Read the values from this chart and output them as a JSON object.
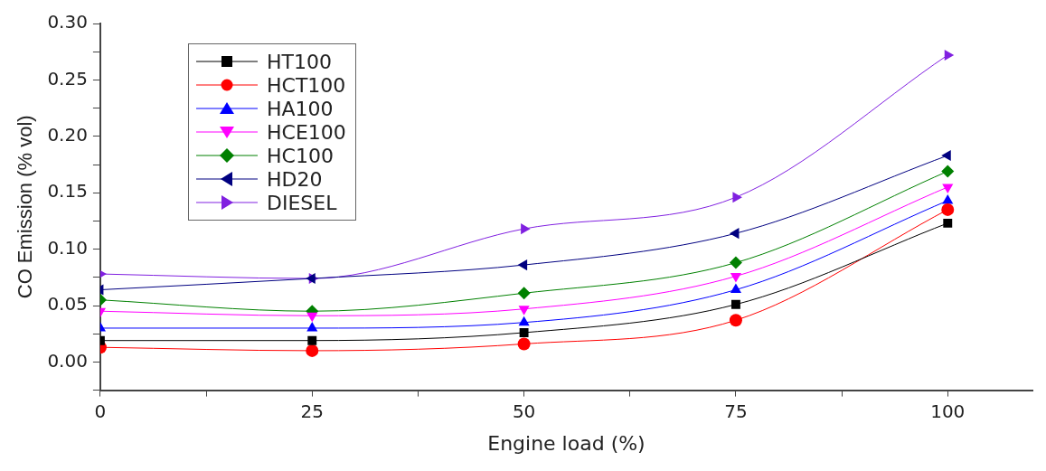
{
  "chart_data": {
    "type": "line",
    "xlabel": "Engine load (%)",
    "ylabel": "CO Emission (% vol)",
    "x": [
      0,
      25,
      50,
      75,
      100
    ],
    "xlim": [
      0,
      110
    ],
    "xticks": [
      0,
      {
        "value": 12.5,
        "label": null
      },
      25,
      {
        "value": 37.5,
        "label": null
      },
      50,
      {
        "value": 62.5,
        "label": null
      },
      75,
      {
        "value": 87.5,
        "label": null
      },
      100
    ],
    "ylim": [
      -0.025,
      0.3
    ],
    "yticks": [
      {
        "value": -0.025,
        "label": null
      },
      {
        "value": 0,
        "label": "0.00"
      },
      {
        "value": 0.025,
        "label": null
      },
      0.05,
      {
        "value": 0.075,
        "label": null
      },
      {
        "value": 0.1,
        "label": "0.10"
      },
      {
        "value": 0.125,
        "label": null
      },
      0.15,
      {
        "value": 0.175,
        "label": null
      },
      {
        "value": 0.2,
        "label": "0.20"
      },
      {
        "value": 0.225,
        "label": null
      },
      0.25,
      {
        "value": 0.275,
        "label": null
      },
      {
        "value": 0.3,
        "label": "0.30"
      }
    ],
    "grid": false,
    "legend": "top left",
    "series": [
      {
        "name": "HT100",
        "color": "#000000",
        "marker": "square",
        "values": [
          0.019,
          0.019,
          0.026,
          0.051,
          0.123
        ]
      },
      {
        "name": "HCT100",
        "color": "#ff0000",
        "marker": "circle",
        "values": [
          0.013,
          0.01,
          0.016,
          0.037,
          0.135
        ]
      },
      {
        "name": "HA100",
        "color": "#0000ff",
        "marker": "triangle",
        "values": [
          0.03,
          0.03,
          0.035,
          0.064,
          0.143
        ]
      },
      {
        "name": "HCE100",
        "color": "#ff00ff",
        "marker": "triangle-down",
        "values": [
          0.045,
          0.041,
          0.047,
          0.076,
          0.155
        ]
      },
      {
        "name": "HC100",
        "color": "#008000",
        "marker": "diamond",
        "values": [
          0.055,
          0.045,
          0.061,
          0.088,
          0.169
        ]
      },
      {
        "name": "HD20",
        "color": "#000080",
        "marker": "triangle-left",
        "values": [
          0.064,
          0.074,
          0.086,
          0.114,
          0.183
        ]
      },
      {
        "name": "DIESEL",
        "color": "#8020e0",
        "marker": "triangle-right",
        "values": [
          0.078,
          0.074,
          0.118,
          0.146,
          0.272
        ]
      }
    ]
  }
}
